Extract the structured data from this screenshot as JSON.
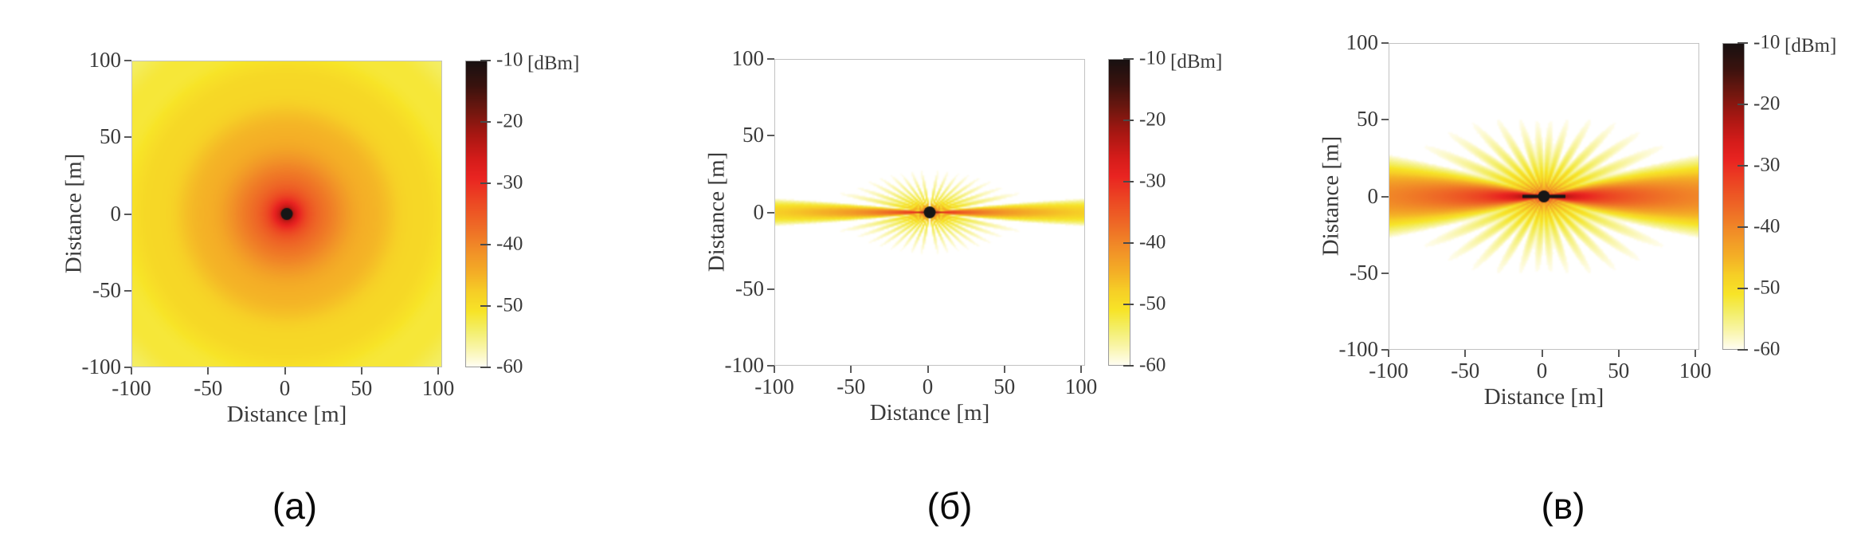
{
  "figure": {
    "background_color": "#ffffff",
    "axis_box_color": "#c2c2c2",
    "tick_color": "#5a5a5a",
    "text_color": "#3a3a3a",
    "marker_color": "#161616"
  },
  "colormap": {
    "description": "reversed hot colormap: black at -10 dBm through red, orange, yellow to white at -60 dBm",
    "below_min_color": "#ffffff",
    "stops": [
      [
        -10,
        "#191111"
      ],
      [
        -14,
        "#3a120e"
      ],
      [
        -18,
        "#70170f"
      ],
      [
        -22,
        "#a81712"
      ],
      [
        -26,
        "#d51c1a"
      ],
      [
        -29,
        "#e92421"
      ],
      [
        -33,
        "#ec4823"
      ],
      [
        -37,
        "#ee6a26"
      ],
      [
        -41,
        "#f18f27"
      ],
      [
        -45,
        "#f4b126"
      ],
      [
        -48,
        "#f6d026"
      ],
      [
        -51,
        "#f7e427"
      ],
      [
        -54,
        "#f3ee67"
      ],
      [
        -57,
        "#f9f5a8"
      ],
      [
        -60,
        "#fffdf0"
      ]
    ]
  },
  "chart_data": [
    {
      "type": "heatmap",
      "caption": "(а)",
      "xlabel": "Distance [m]",
      "ylabel": "Distance [m]",
      "x_range": [
        -100,
        100
      ],
      "y_range": [
        -100,
        100
      ],
      "x_ticks": [
        -100,
        -50,
        0,
        50,
        100
      ],
      "y_ticks": [
        100,
        50,
        0,
        -50,
        -100
      ],
      "x_tick_labels": [
        "-100",
        "-50",
        "0",
        "50",
        "100"
      ],
      "y_tick_labels": [
        "100",
        "50",
        "0",
        "-50",
        "-100"
      ],
      "colorbar": {
        "unit": "[dBm]",
        "tick_labels": [
          "-10",
          "-20",
          "-30",
          "-40",
          "-50",
          "-60"
        ],
        "max_dBm": -10,
        "min_dBm": -60
      },
      "source_marker": {
        "x_m": 0,
        "y_m": 0
      },
      "pattern": {
        "kind": "omni",
        "tx_dBm": -10,
        "path_loss_exponent": 2,
        "ripple_dB": 0.9,
        "ripple_period_m": 32,
        "ripple_phase_m": 37
      }
    },
    {
      "type": "heatmap",
      "caption": "(б)",
      "xlabel": "Distance [m]",
      "ylabel": "Distance [m]",
      "x_range": [
        -100,
        100
      ],
      "y_range": [
        -100,
        100
      ],
      "x_ticks": [
        -100,
        -50,
        0,
        50,
        100
      ],
      "y_ticks": [
        100,
        50,
        0,
        -50,
        -100
      ],
      "x_tick_labels": [
        "-100",
        "-50",
        "0",
        "50",
        "100"
      ],
      "y_tick_labels": [
        "100",
        "50",
        "0",
        "-50",
        "-100"
      ],
      "colorbar": {
        "unit": "[dBm]",
        "tick_labels": [
          "-10",
          "-20",
          "-30",
          "-40",
          "-50",
          "-60"
        ],
        "max_dBm": -10,
        "min_dBm": -60
      },
      "source_marker": {
        "x_m": 0,
        "y_m": 0
      },
      "pattern": {
        "kind": "beams",
        "tx_dBm": -8,
        "path_loss_exponent": 2,
        "main_half_deg": 2.6,
        "sidelobes": [
          {
            "angle_deg": 12,
            "level_dB": -16.5,
            "width_deg": 2.2
          },
          {
            "angle_deg": 19,
            "level_dB": -18.0,
            "width_deg": 2.2
          },
          {
            "angle_deg": 27,
            "level_dB": -19.0,
            "width_deg": 2.3
          },
          {
            "angle_deg": 35,
            "level_dB": -20.0,
            "width_deg": 2.4
          },
          {
            "angle_deg": 44,
            "level_dB": -21.0,
            "width_deg": 2.5
          },
          {
            "angle_deg": 54,
            "level_dB": -22.0,
            "width_deg": 2.7
          },
          {
            "angle_deg": 66,
            "level_dB": -22.5,
            "width_deg": 2.9
          },
          {
            "angle_deg": 79,
            "level_dB": -23.0,
            "width_deg": 3.1
          }
        ]
      }
    },
    {
      "type": "heatmap",
      "caption": "(в)",
      "xlabel": "Distance [m]",
      "ylabel": "Distance [m]",
      "x_range": [
        -100,
        100
      ],
      "y_range": [
        -100,
        100
      ],
      "x_ticks": [
        -100,
        -50,
        0,
        50,
        100
      ],
      "y_ticks": [
        100,
        50,
        0,
        -50,
        -100
      ],
      "x_tick_labels": [
        "-100",
        "-50",
        "0",
        "50",
        "100"
      ],
      "y_tick_labels": [
        "100",
        "50",
        "0",
        "-50",
        "-100"
      ],
      "colorbar": {
        "unit": "[dBm]",
        "tick_labels": [
          "-10",
          "-20",
          "-30",
          "-40",
          "-50",
          "-60"
        ],
        "max_dBm": -10,
        "min_dBm": -60
      },
      "source_marker": {
        "x_m": 0,
        "y_m": 0,
        "whisker": true
      },
      "pattern": {
        "kind": "beams",
        "tx_dBm": 0,
        "path_loss_exponent": 2,
        "main_half_deg": 5.5,
        "sidelobes": [
          {
            "angle_deg": 13,
            "level_dB": -20.5,
            "width_deg": 3.0
          },
          {
            "angle_deg": 23,
            "level_dB": -21.5,
            "width_deg": 3.2
          },
          {
            "angle_deg": 34,
            "level_dB": -22.5,
            "width_deg": 3.4
          },
          {
            "angle_deg": 46,
            "level_dB": -23.5,
            "width_deg": 3.6
          },
          {
            "angle_deg": 59,
            "level_dB": -24.5,
            "width_deg": 3.8
          },
          {
            "angle_deg": 73,
            "level_dB": -25.5,
            "width_deg": 4.0
          },
          {
            "angle_deg": 85,
            "level_dB": -26.0,
            "width_deg": 4.2
          }
        ]
      }
    }
  ]
}
